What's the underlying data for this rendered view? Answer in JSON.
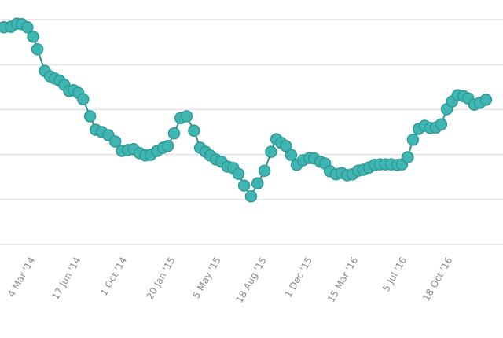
{
  "chart_data": {
    "type": "line",
    "title": "",
    "xlabel": "",
    "ylabel": "",
    "x_units": "days since 4 Mar '14",
    "xlim": [
      -81,
      1075
    ],
    "ylim": [
      0,
      5
    ],
    "grid": true,
    "gridlines_y": [
      0,
      1,
      2,
      3,
      4,
      5
    ],
    "legend": "none",
    "colors": {
      "marker": "#3fb6b2",
      "marker_edge": "#2f9a96",
      "line": "#2f8f8c",
      "grid": "#e2e2e2",
      "tick": "#8a8a8a"
    },
    "x_ticks": [
      {
        "day": 0,
        "label": "4 Mar '14"
      },
      {
        "day": 105,
        "label": "17 Jun '14"
      },
      {
        "day": 211,
        "label": "1 Oct '14"
      },
      {
        "day": 322,
        "label": "20 Jan '15"
      },
      {
        "day": 427,
        "label": "5 May '15"
      },
      {
        "day": 532,
        "label": "18 Aug '15"
      },
      {
        "day": 637,
        "label": "1 Dec '15"
      },
      {
        "day": 742,
        "label": "15 Mar '16"
      },
      {
        "day": 854,
        "label": "5 Jul '16"
      },
      {
        "day": 959,
        "label": "18 Oct '16"
      }
    ],
    "series": [
      {
        "name": "series-1",
        "x": [
          -72,
          -56,
          -42,
          -31,
          -18,
          -5,
          5,
          22,
          34,
          45,
          56,
          67,
          78,
          88,
          99,
          110,
          126,
          139,
          153,
          168,
          184,
          199,
          213,
          226,
          240,
          253,
          265,
          280,
          294,
          305,
          319,
          334,
          348,
          365,
          379,
          392,
          402,
          415,
          428,
          442,
          455,
          467,
          480,
          496,
          511,
          527,
          542,
          554,
          565,
          576,
          588,
          601,
          615,
          630,
          641,
          655,
          666,
          677,
          691,
          704,
          717,
          729,
          742,
          754,
          767,
          780,
          792,
          805,
          818,
          832,
          843,
          856,
          868,
          881,
          895,
          908,
          921,
          933,
          946,
          958,
          971,
          984,
          995,
          1009,
          1022,
          1036
        ],
        "values": [
          4.83,
          4.84,
          4.91,
          4.9,
          4.83,
          4.62,
          4.34,
          3.86,
          3.74,
          3.69,
          3.64,
          3.55,
          3.41,
          3.43,
          3.37,
          3.23,
          2.85,
          2.55,
          2.5,
          2.43,
          2.29,
          2.08,
          2.1,
          2.12,
          2.03,
          1.98,
          1.99,
          2.08,
          2.15,
          2.19,
          2.47,
          2.81,
          2.85,
          2.53,
          2.15,
          2.06,
          1.98,
          1.89,
          1.84,
          1.73,
          1.7,
          1.57,
          1.31,
          1.07,
          1.36,
          1.64,
          2.06,
          2.34,
          2.26,
          2.19,
          1.99,
          1.77,
          1.87,
          1.92,
          1.91,
          1.84,
          1.8,
          1.63,
          1.56,
          1.59,
          1.54,
          1.56,
          1.64,
          1.66,
          1.71,
          1.77,
          1.78,
          1.78,
          1.78,
          1.77,
          1.78,
          1.94,
          2.33,
          2.57,
          2.64,
          2.59,
          2.6,
          2.67,
          3.01,
          3.18,
          3.32,
          3.3,
          3.25,
          3.11,
          3.15,
          3.22
        ]
      }
    ]
  }
}
